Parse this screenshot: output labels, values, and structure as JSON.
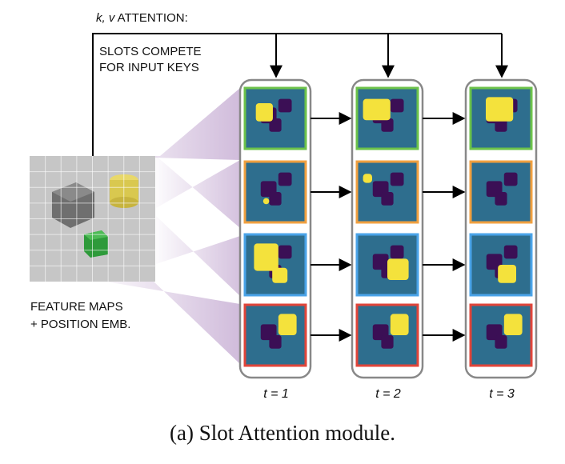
{
  "attention_label_kv": "k, v",
  "attention_label_rest": " ATTENTION:",
  "compete_line1": "SLOTS COMPETE",
  "compete_line2": "FOR INPUT KEYS",
  "feature_line1": "FEATURE MAPS",
  "feature_line2": "+ POSITION EMB.",
  "time_labels": [
    "t = 1",
    "t = 2",
    "t = 3"
  ],
  "caption": "(a) Slot Attention module.",
  "slot_colors": [
    "#6cc24a",
    "#f0a040",
    "#4aa3e8",
    "#e0453a"
  ],
  "colors": {
    "mask_bg": "#2e6e8e",
    "mask_dark": "#3b0f55",
    "mask_bright": "#f4e23c",
    "fan": "#8e5ca8",
    "frame": "#888888"
  }
}
